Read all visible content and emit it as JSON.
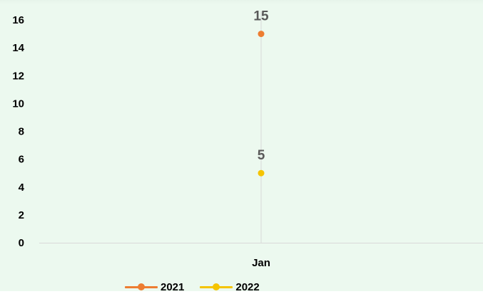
{
  "chart_data": {
    "type": "line",
    "title": "",
    "xlabel": "",
    "ylabel": "",
    "categories": [
      "Jan"
    ],
    "ylim": [
      0,
      16
    ],
    "yticks": [
      0,
      2,
      4,
      6,
      8,
      10,
      12,
      14,
      16
    ],
    "grid": false,
    "legend_position": "bottom-left",
    "data_labels": true,
    "series": [
      {
        "name": "2021",
        "values": [
          15
        ],
        "labels": [
          "15"
        ],
        "color": "#ed7d31"
      },
      {
        "name": "2022",
        "values": [
          5
        ],
        "labels": [
          "5"
        ],
        "color": "#f5c400"
      }
    ]
  }
}
